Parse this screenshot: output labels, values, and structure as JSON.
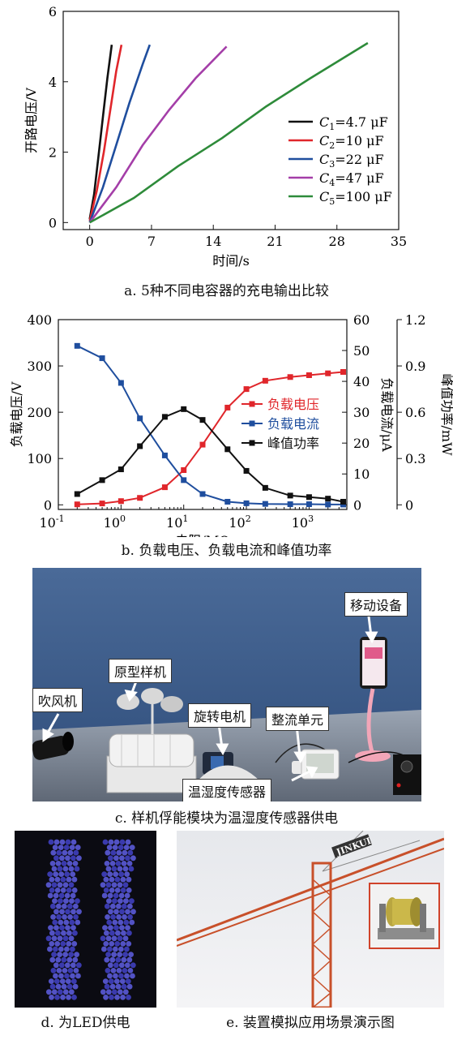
{
  "figure_a": {
    "caption": "a. 5种不同电容器的充电输出比较",
    "xlabel": "时间/s",
    "ylabel": "开路电压/V"
  },
  "figure_b": {
    "caption": "b. 负载电压、负载电流和峰值功率",
    "xlabel": "电阻/MΩ",
    "ylabel_left": "负载电压/V",
    "ylabel_right1": "负载电流/μA",
    "ylabel_right2": "峰值功率/mW"
  },
  "figure_c": {
    "caption": "c. 样机俘能模块为温湿度传感器供电",
    "labels": {
      "blower": "吹风机",
      "prototype": "原型样机",
      "motor": "旋转电机",
      "mobile": "移动设备",
      "rectifier": "整流单元",
      "sensor": "温湿度传感器"
    }
  },
  "figure_d": {
    "caption": "d. 为LED供电"
  },
  "figure_e": {
    "caption": "e. 装置模拟应用场景演示图",
    "crane_text": "JINKUI"
  },
  "chart_data": [
    {
      "type": "line",
      "title": "",
      "xlabel": "时间/s",
      "ylabel": "开路电压/V",
      "xlim": [
        -3,
        35
      ],
      "ylim": [
        -0.2,
        6
      ],
      "xticks": [
        0,
        7,
        14,
        21,
        28,
        35
      ],
      "yticks": [
        0,
        2,
        4,
        6
      ],
      "legend_position": "right",
      "series": [
        {
          "name": "C1=4.7 μF",
          "name_parts": [
            "C",
            "1",
            "=4.7 μF"
          ],
          "color": "#111111",
          "x": [
            0,
            0.5,
            1.0,
            1.5,
            2.0,
            2.5
          ],
          "y": [
            0.1,
            0.8,
            1.9,
            3.0,
            4.1,
            5.05
          ]
        },
        {
          "name": "C2=10 μF",
          "name_parts": [
            "C",
            "2",
            "=10 μF"
          ],
          "color": "#e0262b",
          "x": [
            0,
            0.8,
            1.6,
            2.4,
            3.0,
            3.6
          ],
          "y": [
            0.05,
            0.9,
            2.0,
            3.3,
            4.3,
            5.05
          ]
        },
        {
          "name": "C3=22 μF",
          "name_parts": [
            "C",
            "3",
            "=22 μF"
          ],
          "color": "#1f4e9e",
          "x": [
            0,
            1.5,
            3.0,
            4.5,
            6.0,
            6.8
          ],
          "y": [
            0.0,
            1.0,
            2.2,
            3.4,
            4.5,
            5.05
          ]
        },
        {
          "name": "C4=47 μF",
          "name_parts": [
            "C",
            "4",
            "=47 μF"
          ],
          "color": "#a43ea8",
          "x": [
            0,
            3,
            6,
            9,
            12,
            15.5
          ],
          "y": [
            0.0,
            1.0,
            2.2,
            3.2,
            4.1,
            5.0
          ]
        },
        {
          "name": "C5=100 μF",
          "name_parts": [
            "C",
            "5",
            "=100 μF"
          ],
          "color": "#2e8b3a",
          "x": [
            0,
            5,
            10,
            15,
            20,
            25,
            31.5
          ],
          "y": [
            0.0,
            0.7,
            1.6,
            2.4,
            3.3,
            4.1,
            5.1
          ]
        }
      ]
    },
    {
      "type": "line",
      "title": "",
      "xlabel": "电阻/MΩ",
      "x_scale": "log",
      "xlim": [
        0.1,
        4000
      ],
      "xticks": [
        "10^-1",
        "10^0",
        "10^1",
        "10^2",
        "10^3"
      ],
      "y_axes": [
        {
          "label": "负载电压/V",
          "lim": [
            -10,
            400
          ],
          "ticks": [
            0,
            100,
            200,
            300,
            400
          ]
        },
        {
          "label": "负载电流/μA",
          "lim": [
            -1.5,
            60
          ],
          "ticks": [
            0,
            10,
            20,
            30,
            40,
            50,
            60
          ]
        },
        {
          "label": "峰值功率/mW",
          "lim": [
            -0.03,
            1.2
          ],
          "ticks": [
            0,
            0.3,
            0.6,
            0.9,
            1.2
          ]
        }
      ],
      "legend_position": "right",
      "series": [
        {
          "name": "负载电压",
          "color": "#e0262b",
          "axis": 0,
          "x": [
            0.2,
            0.5,
            1,
            2,
            5,
            10,
            20,
            50,
            100,
            200,
            500,
            1000,
            2000,
            3500
          ],
          "y": [
            1,
            3,
            8,
            15,
            38,
            75,
            130,
            210,
            250,
            268,
            276,
            280,
            284,
            287
          ]
        },
        {
          "name": "负载电流",
          "color": "#1f4e9e",
          "axis": 1,
          "x": [
            0.2,
            0.5,
            1,
            2,
            5,
            10,
            20,
            50,
            100,
            200,
            500,
            1000,
            2000,
            3500
          ],
          "y": [
            51.5,
            47.5,
            39.5,
            28,
            16,
            8,
            3.5,
            1.0,
            0.5,
            0.3,
            0.2,
            0.2,
            0.1,
            0.1
          ]
        },
        {
          "name": "峰值功率",
          "color": "#111111",
          "axis": 2,
          "x": [
            0.2,
            0.5,
            1,
            2,
            5,
            10,
            20,
            50,
            100,
            200,
            500,
            1000,
            2000,
            3500
          ],
          "y": [
            0.07,
            0.16,
            0.23,
            0.38,
            0.57,
            0.62,
            0.55,
            0.36,
            0.22,
            0.11,
            0.06,
            0.05,
            0.04,
            0.02
          ]
        }
      ]
    }
  ],
  "colors": {
    "photo_bg": "#3d5c8a",
    "table": "#7c8696",
    "red": "#e0262b",
    "blue": "#1f4e9e",
    "crane": "#c8502a"
  },
  "icons": [
    "blower-icon",
    "prototype-device-icon",
    "motor-icon",
    "phone-icon",
    "sensor-icon",
    "led-array-icon",
    "crane-icon",
    "winch-inset-icon"
  ]
}
